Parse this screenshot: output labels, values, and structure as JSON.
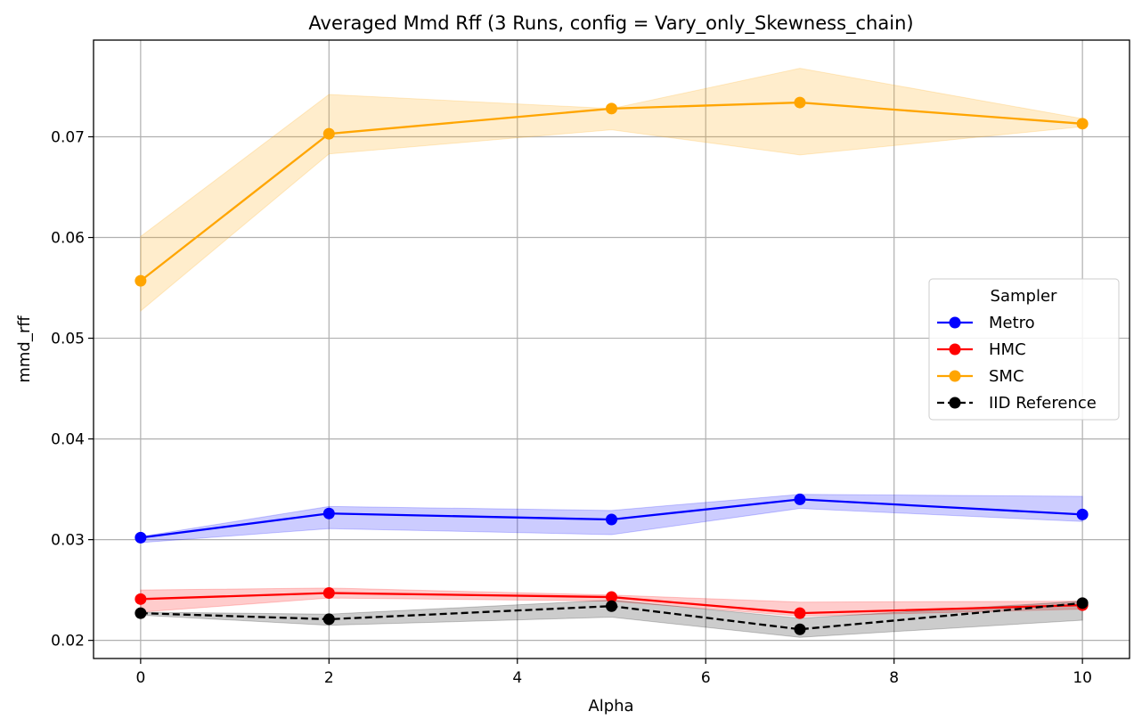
{
  "chart_data": {
    "type": "line",
    "title": "Averaged Mmd Rff (3 Runs, config = Vary_only_Skewness_chain)",
    "xlabel": "Alpha",
    "ylabel": "mmd_rff",
    "xlim": [
      -0.5,
      10.5
    ],
    "ylim": [
      0.0182,
      0.0796
    ],
    "xticks": [
      0,
      2,
      4,
      6,
      8,
      10
    ],
    "xtick_labels": [
      "0",
      "2",
      "4",
      "6",
      "8",
      "10"
    ],
    "yticks": [
      0.02,
      0.03,
      0.04,
      0.05,
      0.06,
      0.07
    ],
    "ytick_labels": [
      "0.02",
      "0.03",
      "0.04",
      "0.05",
      "0.06",
      "0.07"
    ],
    "grid": true,
    "x": [
      0,
      2,
      5,
      7,
      10
    ],
    "legend": {
      "title": "Sampler",
      "position": "center-right"
    },
    "series": [
      {
        "name": "Metro",
        "color": "#0000ff",
        "linestyle": "solid",
        "values": [
          0.0302,
          0.0326,
          0.032,
          0.034,
          0.0325
        ],
        "lower": [
          0.0297,
          0.0311,
          0.0305,
          0.0331,
          0.0318
        ],
        "upper": [
          0.0303,
          0.0333,
          0.0329,
          0.0345,
          0.0343
        ]
      },
      {
        "name": "HMC",
        "color": "#ff0000",
        "linestyle": "solid",
        "values": [
          0.0241,
          0.0247,
          0.0243,
          0.0227,
          0.0235
        ],
        "lower": [
          0.0228,
          0.0242,
          0.0239,
          0.0224,
          0.0231
        ],
        "upper": [
          0.025,
          0.0252,
          0.0245,
          0.0238,
          0.0239
        ]
      },
      {
        "name": "SMC",
        "color": "#ffa500",
        "linestyle": "solid",
        "values": [
          0.0557,
          0.0703,
          0.0728,
          0.0734,
          0.0713
        ],
        "lower": [
          0.0527,
          0.0683,
          0.0707,
          0.0682,
          0.071
        ],
        "upper": [
          0.0601,
          0.0742,
          0.0728,
          0.0768,
          0.0718
        ]
      },
      {
        "name": "IID Reference",
        "color": "#000000",
        "linestyle": "dashed",
        "values": [
          0.0227,
          0.0221,
          0.0234,
          0.0211,
          0.0237
        ],
        "lower": [
          0.0225,
          0.0215,
          0.0223,
          0.0203,
          0.022
        ],
        "upper": [
          0.0228,
          0.0226,
          0.024,
          0.0222,
          0.0239
        ]
      }
    ]
  }
}
